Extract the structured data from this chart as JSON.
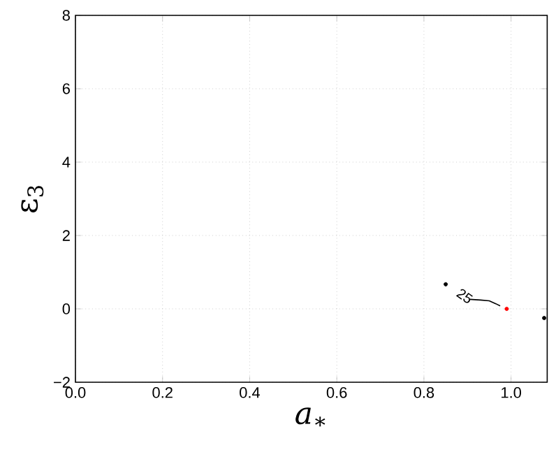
{
  "chart_data": {
    "type": "line",
    "xlabel": "*a*$_{∗}$",
    "ylabel": "ε$_{3}$",
    "xlim": [
      0,
      1.083
    ],
    "ylim": [
      -2,
      8
    ],
    "xticks": [
      {
        "value": 0,
        "label": "0.0"
      },
      {
        "value": 0.2,
        "label": "0.2"
      },
      {
        "value": 0.4,
        "label": "0.4"
      },
      {
        "value": 0.6,
        "label": "0.6"
      },
      {
        "value": 0.8,
        "label": "0.8"
      },
      {
        "value": 1.0,
        "label": "1.0"
      }
    ],
    "yticks": [
      {
        "value": -2,
        "label": "−2"
      },
      0,
      2,
      4,
      6,
      8
    ],
    "grid": true,
    "series": [
      {
        "color": "#000000",
        "marker": "none",
        "line_style": "solid",
        "x": [
          0.905,
          0.93,
          0.95,
          0.965,
          0.975
        ],
        "values": [
          0.26,
          0.24,
          0.22,
          0.14,
          0.08
        ]
      },
      {
        "type": "scatter",
        "color": "#000000",
        "marker": "circle",
        "x": [
          0.85,
          1.076
        ],
        "values": [
          0.67,
          -0.25
        ]
      },
      {
        "type": "scatter",
        "color": "#ff0000",
        "marker": "circle",
        "x": [
          0.99
        ],
        "values": [
          0
        ]
      }
    ],
    "annotations": [
      "25"
    ]
  }
}
